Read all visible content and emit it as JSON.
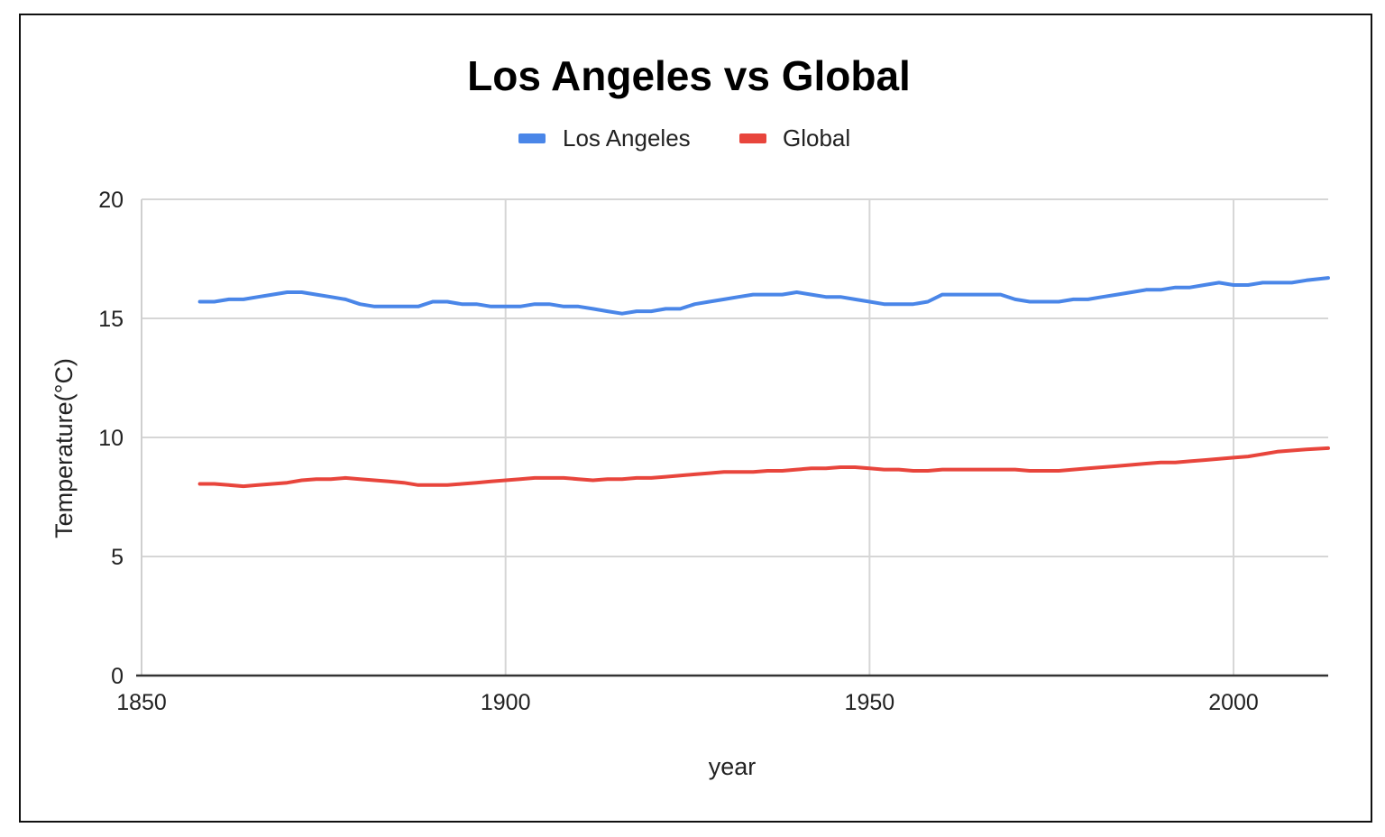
{
  "chart_data": {
    "type": "line",
    "title": "Los Angeles vs Global",
    "xlabel": "year",
    "ylabel": "Temperature(°C)",
    "xlim": [
      1850,
      2013
    ],
    "ylim": [
      0,
      20
    ],
    "x_ticks": [
      1850,
      1900,
      1950,
      2000
    ],
    "y_ticks": [
      0,
      5,
      10,
      15,
      20
    ],
    "grid": true,
    "legend_position": "top",
    "series": [
      {
        "name": "Los Angeles",
        "color": "#4a86e8",
        "x": [
          1858,
          1860,
          1862,
          1864,
          1866,
          1868,
          1870,
          1872,
          1874,
          1876,
          1878,
          1880,
          1882,
          1884,
          1886,
          1888,
          1890,
          1892,
          1894,
          1896,
          1898,
          1900,
          1902,
          1904,
          1906,
          1908,
          1910,
          1912,
          1914,
          1916,
          1918,
          1920,
          1922,
          1924,
          1926,
          1928,
          1930,
          1932,
          1934,
          1936,
          1938,
          1940,
          1942,
          1944,
          1946,
          1948,
          1950,
          1952,
          1954,
          1956,
          1958,
          1960,
          1962,
          1964,
          1966,
          1968,
          1970,
          1972,
          1974,
          1976,
          1978,
          1980,
          1982,
          1984,
          1986,
          1988,
          1990,
          1992,
          1994,
          1996,
          1998,
          2000,
          2002,
          2004,
          2006,
          2008,
          2010,
          2013
        ],
        "values": [
          15.7,
          15.7,
          15.8,
          15.8,
          15.9,
          16.0,
          16.1,
          16.1,
          16.0,
          15.9,
          15.8,
          15.6,
          15.5,
          15.5,
          15.5,
          15.5,
          15.7,
          15.7,
          15.6,
          15.6,
          15.5,
          15.5,
          15.5,
          15.6,
          15.6,
          15.5,
          15.5,
          15.4,
          15.3,
          15.2,
          15.3,
          15.3,
          15.4,
          15.4,
          15.6,
          15.7,
          15.8,
          15.9,
          16.0,
          16.0,
          16.0,
          16.1,
          16.0,
          15.9,
          15.9,
          15.8,
          15.7,
          15.6,
          15.6,
          15.6,
          15.7,
          16.0,
          16.0,
          16.0,
          16.0,
          16.0,
          15.8,
          15.7,
          15.7,
          15.7,
          15.8,
          15.8,
          15.9,
          16.0,
          16.1,
          16.2,
          16.2,
          16.3,
          16.3,
          16.4,
          16.5,
          16.4,
          16.4,
          16.5,
          16.5,
          16.5,
          16.6,
          16.7
        ]
      },
      {
        "name": "Global",
        "color": "#e8453c",
        "x": [
          1858,
          1860,
          1862,
          1864,
          1866,
          1868,
          1870,
          1872,
          1874,
          1876,
          1878,
          1880,
          1882,
          1884,
          1886,
          1888,
          1890,
          1892,
          1894,
          1896,
          1898,
          1900,
          1902,
          1904,
          1906,
          1908,
          1910,
          1912,
          1914,
          1916,
          1918,
          1920,
          1922,
          1924,
          1926,
          1928,
          1930,
          1932,
          1934,
          1936,
          1938,
          1940,
          1942,
          1944,
          1946,
          1948,
          1950,
          1952,
          1954,
          1956,
          1958,
          1960,
          1962,
          1964,
          1966,
          1968,
          1970,
          1972,
          1974,
          1976,
          1978,
          1980,
          1982,
          1984,
          1986,
          1988,
          1990,
          1992,
          1994,
          1996,
          1998,
          2000,
          2002,
          2004,
          2006,
          2008,
          2010,
          2013
        ],
        "values": [
          8.05,
          8.05,
          8.0,
          7.95,
          8.0,
          8.05,
          8.1,
          8.2,
          8.25,
          8.25,
          8.3,
          8.25,
          8.2,
          8.15,
          8.1,
          8.0,
          8.0,
          8.0,
          8.05,
          8.1,
          8.15,
          8.2,
          8.25,
          8.3,
          8.3,
          8.3,
          8.25,
          8.2,
          8.25,
          8.25,
          8.3,
          8.3,
          8.35,
          8.4,
          8.45,
          8.5,
          8.55,
          8.55,
          8.55,
          8.6,
          8.6,
          8.65,
          8.7,
          8.7,
          8.75,
          8.75,
          8.7,
          8.65,
          8.65,
          8.6,
          8.6,
          8.65,
          8.65,
          8.65,
          8.65,
          8.65,
          8.65,
          8.6,
          8.6,
          8.6,
          8.65,
          8.7,
          8.75,
          8.8,
          8.85,
          8.9,
          8.95,
          8.95,
          9.0,
          9.05,
          9.1,
          9.15,
          9.2,
          9.3,
          9.4,
          9.45,
          9.5,
          9.55
        ]
      }
    ]
  }
}
